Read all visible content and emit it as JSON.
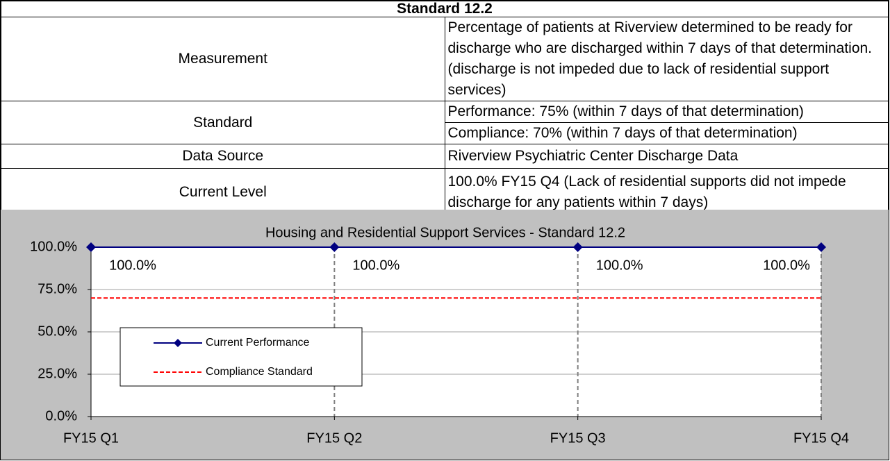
{
  "table": {
    "title": "Standard 12.2",
    "rows": [
      {
        "label": "Measurement",
        "values": [
          "Percentage of patients at Riverview determined to be ready for discharge who are discharged within 7 days of that determination. (discharge is not impeded due to lack of residential support services)"
        ]
      },
      {
        "label": "Standard",
        "values": [
          "Performance: 75% (within 7 days of that determination)",
          "Compliance: 70% (within 7 days of that determination)"
        ]
      },
      {
        "label": "Data Source",
        "values": [
          "Riverview Psychiatric Center Discharge Data"
        ]
      },
      {
        "label": "Current Level",
        "values": [
          "100.0%  FY15 Q4 (Lack of residential supports did not impede discharge for any patients within 7 days)"
        ]
      }
    ]
  },
  "chart_data": {
    "type": "line",
    "title": "Housing and Residential Support Services - Standard 12.2",
    "categories": [
      "FY15 Q1",
      "FY15 Q2",
      "FY15 Q3",
      "FY15 Q4"
    ],
    "series": [
      {
        "name": "Current Performance",
        "color": "#000080",
        "values": [
          100,
          100,
          100,
          100
        ],
        "value_labels": [
          "100.0%",
          "100.0%",
          "100.0%",
          "100.0%"
        ],
        "marker": "diamond"
      },
      {
        "name": "Compliance Standard",
        "color": "#ff0000",
        "values": [
          70,
          70,
          70,
          70
        ],
        "dashed": true
      }
    ],
    "ylim": [
      0,
      100
    ],
    "yticks": [
      {
        "value": 0,
        "label": "0.0%"
      },
      {
        "value": 25,
        "label": "25.0%"
      },
      {
        "value": 50,
        "label": "50.0%"
      },
      {
        "value": 75,
        "label": "75.0%"
      },
      {
        "value": 100,
        "label": "100.0%"
      }
    ],
    "grid": true
  }
}
